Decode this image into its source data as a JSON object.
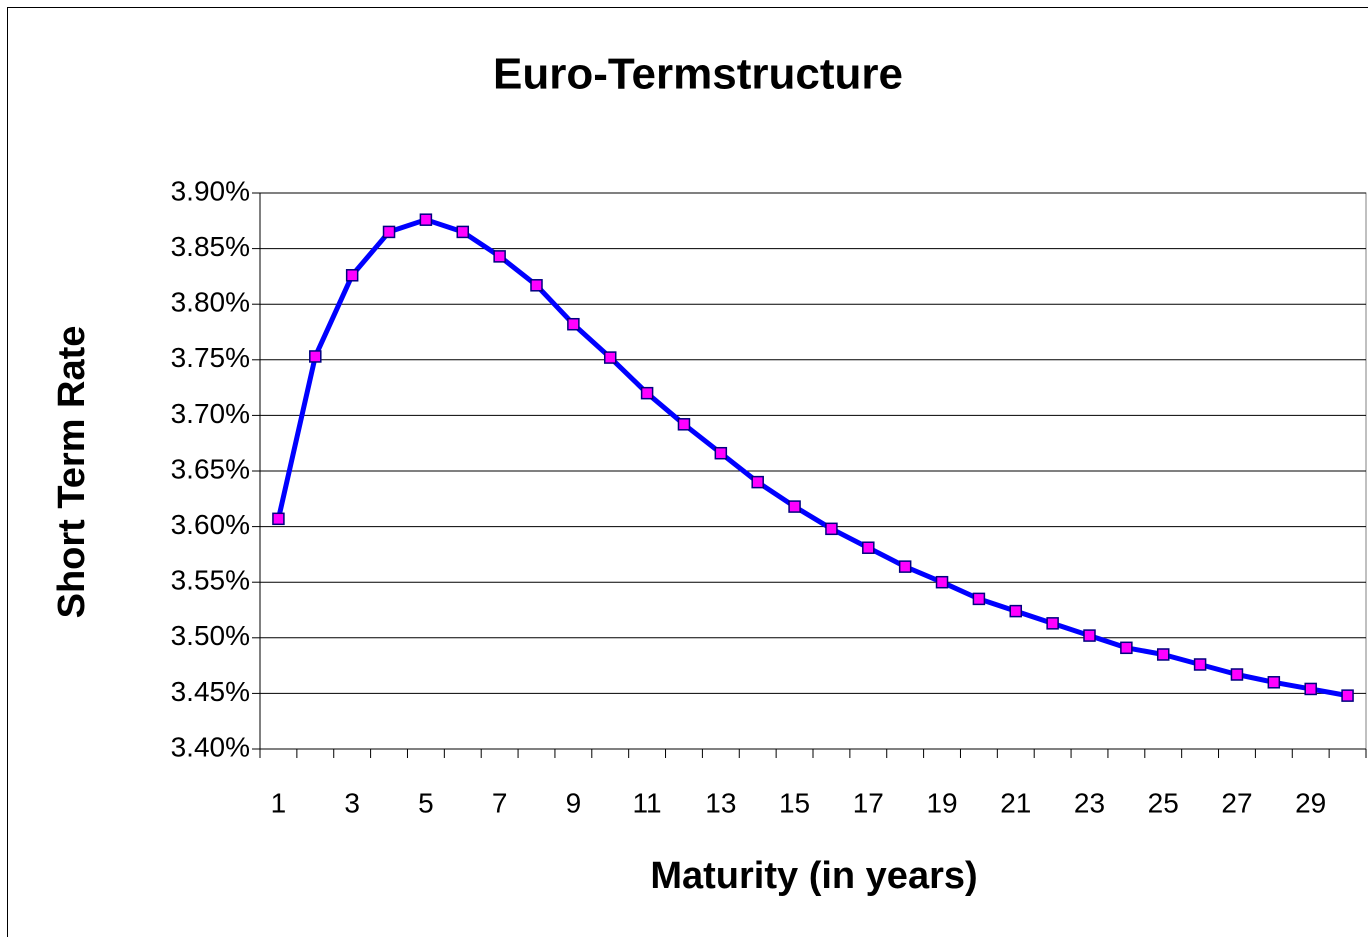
{
  "chart_data": {
    "type": "line",
    "title": "Euro-Termstructure",
    "x_label": "Maturity (in years)",
    "y_label": "Short Term Rate",
    "categories": [
      1,
      null,
      3,
      null,
      5,
      null,
      7,
      null,
      9,
      null,
      11,
      null,
      13,
      null,
      15,
      null,
      17,
      null,
      19,
      null,
      21,
      null,
      23,
      null,
      25,
      null,
      27,
      null,
      29,
      null
    ],
    "series": [
      {
        "name": "Short Term Rate",
        "color": "#0000ff",
        "marker_color": "#ff00ff",
        "values": [
          3.607,
          3.753,
          3.826,
          3.865,
          3.876,
          3.865,
          3.843,
          3.817,
          3.782,
          3.752,
          3.72,
          3.692,
          3.666,
          3.64,
          3.618,
          3.598,
          3.581,
          3.564,
          3.55,
          3.535,
          3.524,
          3.513,
          3.502,
          3.491,
          3.485,
          3.476,
          3.467,
          3.46,
          3.454,
          3.448
        ]
      }
    ],
    "ylim": [
      3.4,
      3.9
    ],
    "yticks": [
      {
        "value": 3.4,
        "label": "3.40%"
      },
      {
        "value": 3.45,
        "label": "3.45%"
      },
      {
        "value": 3.5,
        "label": "3.50%"
      },
      {
        "value": 3.55,
        "label": "3.55%"
      },
      {
        "value": 3.6,
        "label": "3.60%"
      },
      {
        "value": 3.65,
        "label": "3.65%"
      },
      {
        "value": 3.7,
        "label": "3.70%"
      },
      {
        "value": 3.75,
        "label": "3.75%"
      },
      {
        "value": 3.8,
        "label": "3.80%"
      },
      {
        "value": 3.85,
        "label": "3.85%"
      },
      {
        "value": 3.9,
        "label": "3.90%"
      }
    ],
    "grid": true
  }
}
